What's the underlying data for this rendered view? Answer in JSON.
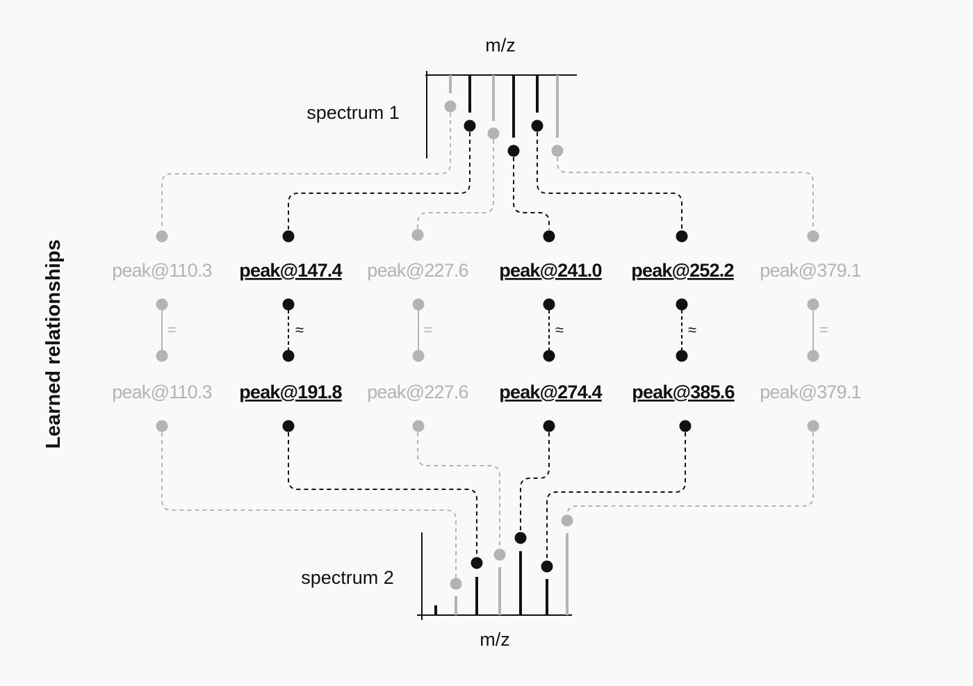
{
  "title": "Learned relationships",
  "spectrum1": {
    "label": "spectrum 1",
    "axis_label": "m/z"
  },
  "spectrum2": {
    "label": "spectrum 2",
    "axis_label": "m/z"
  },
  "colors": {
    "highlight": "#111111",
    "muted": "#b3b3b3",
    "background": "#f9f9f9"
  },
  "columns": [
    {
      "top": "peak@110.3",
      "bottom": "peak@110.3",
      "relation": "=",
      "highlighted": false
    },
    {
      "top": "peak@147.4",
      "bottom": "peak@191.8",
      "relation": "≈",
      "highlighted": true
    },
    {
      "top": "peak@227.6",
      "bottom": "peak@227.6",
      "relation": "=",
      "highlighted": false
    },
    {
      "top": "peak@241.0",
      "bottom": "peak@274.4",
      "relation": "≈",
      "highlighted": true
    },
    {
      "top": "peak@252.2",
      "bottom": "peak@385.6",
      "relation": "≈",
      "highlighted": true
    },
    {
      "top": "peak@379.1",
      "bottom": "peak@379.1",
      "relation": "=",
      "highlighted": false
    }
  ]
}
